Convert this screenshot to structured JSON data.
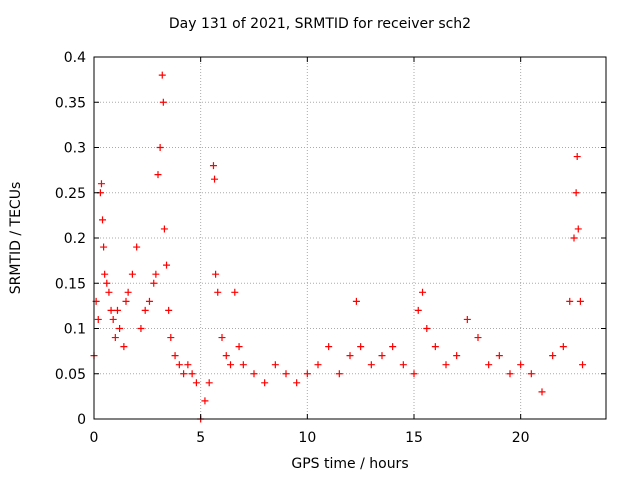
{
  "chart_data": {
    "type": "scatter",
    "title": "Day 131 of 2021, SRMTID for receiver sch2",
    "xlabel": "GPS time / hours",
    "ylabel": "SRMTID / TECUs",
    "xlim": [
      0,
      24
    ],
    "ylim": [
      0,
      0.4
    ],
    "x_ticks": [
      0,
      5,
      10,
      15,
      20
    ],
    "x_tick_labels": [
      "0",
      "5",
      "10",
      "15",
      "20"
    ],
    "y_ticks": [
      0,
      0.05,
      0.1,
      0.15,
      0.2,
      0.25,
      0.3,
      0.35,
      0.4
    ],
    "y_tick_labels": [
      "0",
      "0.05",
      "0.1",
      "0.15",
      "0.2",
      "0.25",
      "0.3",
      "0.35",
      "0.4"
    ],
    "grid": true,
    "marker": "+",
    "marker_color": "#ff0000",
    "series": [
      {
        "name": "SRMTID",
        "points": [
          [
            0.0,
            0.07
          ],
          [
            0.1,
            0.13
          ],
          [
            0.2,
            0.11
          ],
          [
            0.3,
            0.25
          ],
          [
            0.35,
            0.26
          ],
          [
            0.4,
            0.22
          ],
          [
            0.45,
            0.19
          ],
          [
            0.5,
            0.16
          ],
          [
            0.6,
            0.15
          ],
          [
            0.7,
            0.14
          ],
          [
            0.8,
            0.12
          ],
          [
            0.9,
            0.11
          ],
          [
            1.0,
            0.09
          ],
          [
            1.1,
            0.12
          ],
          [
            1.2,
            0.1
          ],
          [
            1.4,
            0.08
          ],
          [
            1.5,
            0.13
          ],
          [
            1.6,
            0.14
          ],
          [
            1.8,
            0.16
          ],
          [
            2.0,
            0.19
          ],
          [
            2.2,
            0.1
          ],
          [
            2.4,
            0.12
          ],
          [
            2.6,
            0.13
          ],
          [
            2.8,
            0.15
          ],
          [
            2.9,
            0.16
          ],
          [
            3.0,
            0.27
          ],
          [
            3.1,
            0.3
          ],
          [
            3.2,
            0.38
          ],
          [
            3.25,
            0.35
          ],
          [
            3.3,
            0.21
          ],
          [
            3.4,
            0.17
          ],
          [
            3.5,
            0.12
          ],
          [
            3.6,
            0.09
          ],
          [
            3.8,
            0.07
          ],
          [
            4.0,
            0.06
          ],
          [
            4.2,
            0.05
          ],
          [
            4.4,
            0.06
          ],
          [
            4.6,
            0.05
          ],
          [
            4.8,
            0.04
          ],
          [
            5.0,
            0.0
          ],
          [
            5.2,
            0.02
          ],
          [
            5.4,
            0.04
          ],
          [
            5.6,
            0.28
          ],
          [
            5.65,
            0.265
          ],
          [
            5.7,
            0.16
          ],
          [
            5.8,
            0.14
          ],
          [
            6.0,
            0.09
          ],
          [
            6.2,
            0.07
          ],
          [
            6.4,
            0.06
          ],
          [
            6.6,
            0.14
          ],
          [
            6.8,
            0.08
          ],
          [
            7.0,
            0.06
          ],
          [
            7.5,
            0.05
          ],
          [
            8.0,
            0.04
          ],
          [
            8.5,
            0.06
          ],
          [
            9.0,
            0.05
          ],
          [
            9.5,
            0.04
          ],
          [
            10.0,
            0.05
          ],
          [
            10.5,
            0.06
          ],
          [
            11.0,
            0.08
          ],
          [
            11.5,
            0.05
          ],
          [
            12.0,
            0.07
          ],
          [
            12.3,
            0.13
          ],
          [
            12.5,
            0.08
          ],
          [
            13.0,
            0.06
          ],
          [
            13.5,
            0.07
          ],
          [
            14.0,
            0.08
          ],
          [
            14.5,
            0.06
          ],
          [
            15.0,
            0.05
          ],
          [
            15.2,
            0.12
          ],
          [
            15.4,
            0.14
          ],
          [
            15.6,
            0.1
          ],
          [
            16.0,
            0.08
          ],
          [
            16.5,
            0.06
          ],
          [
            17.0,
            0.07
          ],
          [
            17.5,
            0.11
          ],
          [
            18.0,
            0.09
          ],
          [
            18.5,
            0.06
          ],
          [
            19.0,
            0.07
          ],
          [
            19.5,
            0.05
          ],
          [
            20.0,
            0.06
          ],
          [
            20.5,
            0.05
          ],
          [
            21.0,
            0.03
          ],
          [
            21.5,
            0.07
          ],
          [
            22.0,
            0.08
          ],
          [
            22.3,
            0.13
          ],
          [
            22.5,
            0.2
          ],
          [
            22.6,
            0.25
          ],
          [
            22.65,
            0.29
          ],
          [
            22.7,
            0.21
          ],
          [
            22.8,
            0.13
          ],
          [
            22.9,
            0.06
          ]
        ]
      }
    ]
  }
}
